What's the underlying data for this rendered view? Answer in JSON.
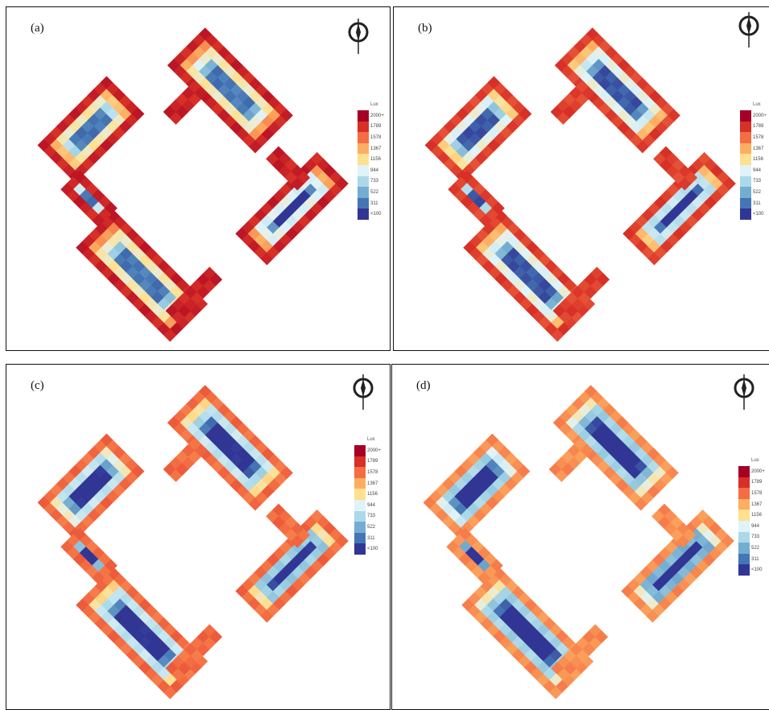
{
  "panels": [
    {
      "label": "(a)"
    },
    {
      "label": "(b)"
    },
    {
      "label": "(c)"
    },
    {
      "label": "(d)"
    }
  ],
  "legend": {
    "unit": "Lux",
    "ticks_a": [
      "2000+",
      "1789",
      "1578",
      "1367",
      "1156",
      "944",
      "733",
      "522",
      "311",
      "<100"
    ],
    "ticks_b": [
      "2000+",
      "1789",
      "1578",
      "1367",
      "1156",
      "944",
      "733",
      "522",
      "311",
      "<100"
    ],
    "ticks_c": [
      "2000+",
      "1789",
      "1578",
      "1367",
      "1156",
      "944",
      "733",
      "522",
      "311",
      "<100"
    ],
    "ticks_d": [
      "2000+",
      "1789",
      "1578",
      "1367",
      "1156",
      "944",
      "733",
      "522",
      "311",
      "<100"
    ],
    "colors": [
      "#a50026",
      "#d73027",
      "#f46d43",
      "#fdae61",
      "#fee090",
      "#e0f3f8",
      "#abd9e9",
      "#74add1",
      "#4575b4",
      "#313695"
    ]
  },
  "compass_icon": "north-arrow-icon"
}
